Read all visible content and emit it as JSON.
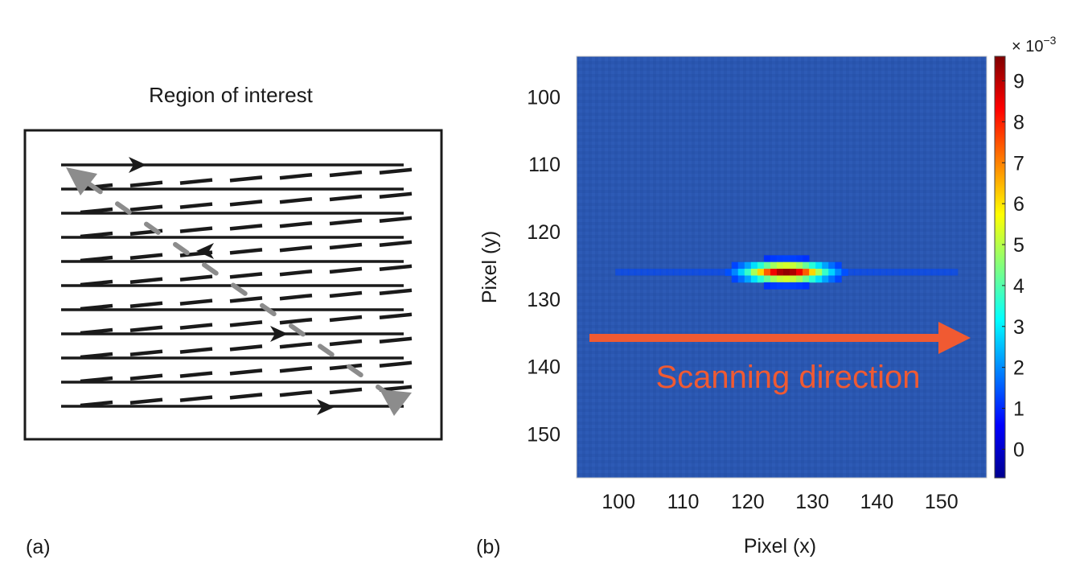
{
  "panel_a": {
    "label": "(a)",
    "title": "Region of interest"
  },
  "panel_b": {
    "label": "(b)",
    "annotation": "Scanning direction",
    "colorbar_multiplier": "× 10",
    "colorbar_exponent": "−3"
  },
  "colors": {
    "background_field": "#2a56b0",
    "arrow": "#f05a32",
    "scan_line": "#1a1a1a",
    "return_path": "#8c8c8c"
  },
  "chart_data": {
    "type": "heatmap",
    "xlabel": "Pixel (x)",
    "ylabel": "Pixel (y)",
    "xlim": [
      93.5,
      157
    ],
    "ylim": [
      156.5,
      94
    ],
    "xticks": [
      100,
      110,
      120,
      130,
      140,
      150
    ],
    "yticks": [
      100,
      110,
      120,
      130,
      140,
      150
    ],
    "colorbar": {
      "ticks": [
        0,
        1,
        2,
        3,
        4,
        5,
        6,
        7,
        8,
        9
      ],
      "range": [
        -0.7,
        9.6
      ],
      "colormap": "jet"
    },
    "background_value": 0.5,
    "peak": {
      "x": 126,
      "y": 126,
      "value": 9.4
    }
  }
}
